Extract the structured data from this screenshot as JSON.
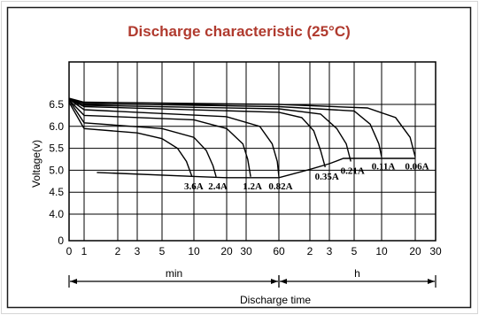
{
  "title": "Discharge characteristic (25°C)",
  "colors": {
    "frame": "#1a1a1a",
    "border": "#d6d6d6",
    "title": "#b03a2e",
    "grid": "#000000",
    "curve": "#000000"
  },
  "chart_data": {
    "type": "line",
    "title": "Discharge characteristic (25°C)",
    "ylabel": "Voltage(v)",
    "xlabel": "Discharge time",
    "ylim": [
      0,
      6.7
    ],
    "y_ticks": [
      "0",
      "4.0",
      "4.5",
      "5.0",
      "5.5",
      "6.0",
      "6.5"
    ],
    "x_ticks": [
      "0",
      "1",
      "2",
      "3",
      "5",
      "10",
      "20",
      "30",
      "60",
      "2",
      "3",
      "5",
      "10",
      "20",
      "30"
    ],
    "x_ranges": [
      {
        "label": "min",
        "from": "0",
        "to": "60 min"
      },
      {
        "label": "h",
        "from": "60 min",
        "to": "30 h"
      }
    ],
    "end_voltage_line": [
      {
        "x": "1.3 min",
        "y": 4.95
      },
      {
        "x": "12 min",
        "y": 4.85
      },
      {
        "x": "20 min",
        "y": 4.83
      },
      {
        "x": "60 min",
        "y": 4.83
      },
      {
        "x": "2 h",
        "y": 5.02
      },
      {
        "x": "3 h",
        "y": 5.15
      },
      {
        "x": "4 h",
        "y": 5.27
      },
      {
        "x": "20 h",
        "y": 5.27
      }
    ],
    "series": [
      {
        "name": "3.6A",
        "points": [
          [
            0,
            6.55
          ],
          [
            1,
            5.95
          ],
          [
            3,
            5.85
          ],
          [
            5,
            5.72
          ],
          [
            7,
            5.5
          ],
          [
            8.5,
            5.2
          ],
          [
            9.6,
            4.85
          ]
        ]
      },
      {
        "name": "2.4A",
        "points": [
          [
            0,
            6.6
          ],
          [
            1,
            6.08
          ],
          [
            5,
            5.95
          ],
          [
            10,
            5.75
          ],
          [
            13,
            5.45
          ],
          [
            15,
            5.1
          ],
          [
            16,
            4.85
          ]
        ]
      },
      {
        "name": "1.2A",
        "points": [
          [
            0,
            6.6
          ],
          [
            1,
            6.25
          ],
          [
            10,
            6.15
          ],
          [
            20,
            5.95
          ],
          [
            28,
            5.6
          ],
          [
            31,
            5.25
          ],
          [
            33,
            4.85
          ]
        ]
      },
      {
        "name": "0.82A",
        "points": [
          [
            0,
            6.62
          ],
          [
            1,
            6.38
          ],
          [
            20,
            6.22
          ],
          [
            40,
            6.0
          ],
          [
            52,
            5.6
          ],
          [
            58,
            5.2
          ],
          [
            60,
            4.85
          ]
        ]
      },
      {
        "name": "0.35A",
        "points": [
          [
            0,
            6.62
          ],
          [
            1,
            6.45
          ],
          [
            60,
            6.32
          ],
          [
            100,
            6.2
          ],
          [
            130,
            5.9
          ],
          [
            150,
            5.45
          ],
          [
            165,
            5.07
          ]
        ]
      },
      {
        "name": "0.21A",
        "points": [
          [
            0,
            6.63
          ],
          [
            1,
            6.48
          ],
          [
            60,
            6.4
          ],
          [
            150,
            6.28
          ],
          [
            210,
            5.95
          ],
          [
            255,
            5.6
          ],
          [
            280,
            5.2
          ]
        ]
      },
      {
        "name": "0.11A",
        "points": [
          [
            0,
            6.63
          ],
          [
            1,
            6.52
          ],
          [
            60,
            6.45
          ],
          [
            300,
            6.35
          ],
          [
            450,
            6.05
          ],
          [
            560,
            5.6
          ],
          [
            600,
            5.3
          ]
        ]
      },
      {
        "name": "0.06A",
        "points": [
          [
            0,
            6.64
          ],
          [
            1,
            6.55
          ],
          [
            60,
            6.5
          ],
          [
            420,
            6.42
          ],
          [
            800,
            6.2
          ],
          [
            1080,
            5.75
          ],
          [
            1200,
            5.3
          ]
        ]
      }
    ]
  }
}
